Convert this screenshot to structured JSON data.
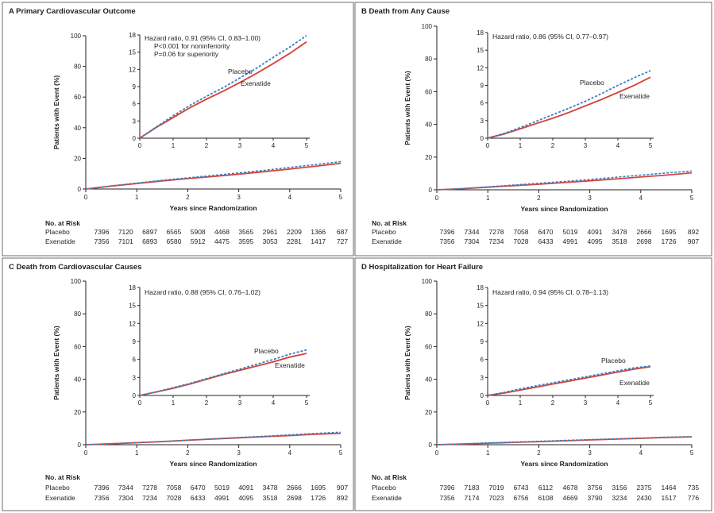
{
  "colors": {
    "placebo": "#3a7fc2",
    "exenatide": "#d6453a",
    "axis": "#231f20",
    "frame": "#6d6e71"
  },
  "risk_header": "No. at Risk",
  "x_axis_label": "Years since Randomization",
  "y_axis_label": "Patients with Event (%)",
  "chart_data": [
    {
      "type": "line",
      "panel_letter": "A",
      "title": "Primary Cardiovascular Outcome",
      "xlabel": "Years since Randomization",
      "ylabel": "Patients with Event (%)",
      "xlim": [
        0,
        5
      ],
      "ylim": [
        0,
        100
      ],
      "x_ticks": [
        0,
        1,
        2,
        3,
        4,
        5
      ],
      "y_ticks": [
        0,
        20,
        40,
        60,
        80,
        100
      ],
      "inset": {
        "ylim": [
          0,
          18
        ],
        "y_ticks": [
          0,
          3,
          6,
          9,
          12,
          15,
          18
        ],
        "x_ticks": [
          0,
          1,
          2,
          3,
          4,
          5
        ],
        "annotation": [
          "Hazard ratio, 0.91 (95% CI, 0.83–1.00)",
          "P<0.001 for noninferiority",
          "P=0.06 for superiority"
        ],
        "labels": {
          "placebo": "Placebo",
          "exenatide": "Exenatide"
        }
      },
      "series": [
        {
          "name": "Placebo",
          "style": "dashed",
          "x": [
            0,
            0.5,
            1,
            1.5,
            2,
            2.5,
            3,
            3.5,
            4,
            4.5,
            5
          ],
          "y": [
            0,
            2.0,
            3.9,
            5.7,
            7.3,
            8.8,
            10.5,
            12.2,
            14.1,
            15.9,
            17.9
          ]
        },
        {
          "name": "Exenatide",
          "style": "solid",
          "x": [
            0,
            0.5,
            1,
            1.5,
            2,
            2.5,
            3,
            3.5,
            4,
            4.5,
            5
          ],
          "y": [
            0,
            1.9,
            3.6,
            5.3,
            6.8,
            8.2,
            9.7,
            11.3,
            13.0,
            14.8,
            16.8
          ]
        }
      ],
      "at_risk": {
        "Placebo": [
          "7396",
          "7120",
          "6897",
          "6565",
          "5908",
          "4468",
          "3565",
          "2961",
          "2209",
          "1366",
          "687"
        ],
        "Exenatide": [
          "7356",
          "7101",
          "6893",
          "6580",
          "5912",
          "4475",
          "3595",
          "3053",
          "2281",
          "1417",
          "727"
        ]
      }
    },
    {
      "type": "line",
      "panel_letter": "B",
      "title": "Death from Any Cause",
      "xlabel": "Years since Randomization",
      "ylabel": "Patients with Event (%)",
      "xlim": [
        0,
        5
      ],
      "ylim": [
        0,
        100
      ],
      "x_ticks": [
        0,
        1,
        2,
        3,
        4,
        5
      ],
      "y_ticks": [
        0,
        20,
        40,
        60,
        80,
        100
      ],
      "inset": {
        "ylim": [
          0,
          18
        ],
        "y_ticks": [
          0,
          3,
          6,
          9,
          12,
          15,
          18
        ],
        "x_ticks": [
          0,
          1,
          2,
          3,
          4,
          5
        ],
        "annotation": [
          "Hazard ratio, 0.86 (95% CI, 0.77–0.97)"
        ],
        "labels": {
          "placebo": "Placebo",
          "exenatide": "Exenatide"
        }
      },
      "series": [
        {
          "name": "Placebo",
          "style": "dashed",
          "x": [
            0,
            0.5,
            1,
            1.5,
            2,
            2.5,
            3,
            3.5,
            4,
            4.5,
            5
          ],
          "y": [
            0,
            0.8,
            1.8,
            2.9,
            4.0,
            5.1,
            6.3,
            7.6,
            9.0,
            10.3,
            11.5
          ]
        },
        {
          "name": "Exenatide",
          "style": "solid",
          "x": [
            0,
            0.5,
            1,
            1.5,
            2,
            2.5,
            3,
            3.5,
            4,
            4.5,
            5
          ],
          "y": [
            0,
            0.7,
            1.6,
            2.5,
            3.4,
            4.4,
            5.5,
            6.6,
            7.8,
            9.0,
            10.4
          ]
        }
      ],
      "at_risk": {
        "Placebo": [
          "7396",
          "7344",
          "7278",
          "7058",
          "6470",
          "5019",
          "4091",
          "3478",
          "2666",
          "1695",
          "892"
        ],
        "Exenatide": [
          "7356",
          "7304",
          "7234",
          "7028",
          "6433",
          "4991",
          "4095",
          "3518",
          "2698",
          "1726",
          "907"
        ]
      }
    },
    {
      "type": "line",
      "panel_letter": "C",
      "title": "Death from Cardiovascular Causes",
      "xlabel": "Years since Randomization",
      "ylabel": "Patients with Event (%)",
      "xlim": [
        0,
        5
      ],
      "ylim": [
        0,
        100
      ],
      "x_ticks": [
        0,
        1,
        2,
        3,
        4,
        5
      ],
      "y_ticks": [
        0,
        20,
        40,
        60,
        80,
        100
      ],
      "inset": {
        "ylim": [
          0,
          18
        ],
        "y_ticks": [
          0,
          3,
          6,
          9,
          12,
          15,
          18
        ],
        "x_ticks": [
          0,
          1,
          2,
          3,
          4,
          5
        ],
        "annotation": [
          "Hazard ratio, 0.88 (95% CI, 0.76–1.02)"
        ],
        "labels": {
          "placebo": "Placebo",
          "exenatide": "Exenatide"
        }
      },
      "series": [
        {
          "name": "Placebo",
          "style": "dashed",
          "x": [
            0,
            0.5,
            1,
            1.5,
            2,
            2.5,
            3,
            3.5,
            4,
            4.5,
            5
          ],
          "y": [
            0,
            0.6,
            1.3,
            2.0,
            2.8,
            3.6,
            4.4,
            5.2,
            6.0,
            6.9,
            7.6
          ]
        },
        {
          "name": "Exenatide",
          "style": "solid",
          "x": [
            0,
            0.5,
            1,
            1.5,
            2,
            2.5,
            3,
            3.5,
            4,
            4.5,
            5
          ],
          "y": [
            0,
            0.6,
            1.2,
            1.9,
            2.7,
            3.5,
            4.2,
            4.9,
            5.6,
            6.4,
            7.0
          ]
        }
      ],
      "at_risk": {
        "Placebo": [
          "7396",
          "7344",
          "7278",
          "7058",
          "6470",
          "5019",
          "4091",
          "3478",
          "2666",
          "1695",
          "907"
        ],
        "Exenatide": [
          "7356",
          "7304",
          "7234",
          "7028",
          "6433",
          "4991",
          "4095",
          "3518",
          "2698",
          "1726",
          "892"
        ]
      }
    },
    {
      "type": "line",
      "panel_letter": "D",
      "title": "Hospitalization for Heart Failure",
      "xlabel": "Years since Randomization",
      "ylabel": "Patients with Event (%)",
      "xlim": [
        0,
        5
      ],
      "ylim": [
        0,
        100
      ],
      "x_ticks": [
        0,
        1,
        2,
        3,
        4,
        5
      ],
      "y_ticks": [
        0,
        20,
        40,
        60,
        80,
        100
      ],
      "inset": {
        "ylim": [
          0,
          18
        ],
        "y_ticks": [
          0,
          3,
          6,
          9,
          12,
          15,
          18
        ],
        "x_ticks": [
          0,
          1,
          2,
          3,
          4,
          5
        ],
        "annotation": [
          "Hazard ratio, 0.94 (95% CI, 0.78–1.13)"
        ],
        "labels": {
          "placebo": "Placebo",
          "exenatide": "Exenatide"
        }
      },
      "series": [
        {
          "name": "Placebo",
          "style": "dashed",
          "x": [
            0,
            0.5,
            1,
            1.5,
            2,
            2.5,
            3,
            3.5,
            4,
            4.5,
            5
          ],
          "y": [
            0,
            0.5,
            1.1,
            1.6,
            2.1,
            2.6,
            3.1,
            3.6,
            4.1,
            4.6,
            4.9
          ]
        },
        {
          "name": "Exenatide",
          "style": "solid",
          "x": [
            0,
            0.5,
            1,
            1.5,
            2,
            2.5,
            3,
            3.5,
            4,
            4.5,
            5
          ],
          "y": [
            0,
            0.4,
            0.9,
            1.4,
            1.9,
            2.4,
            2.9,
            3.4,
            3.9,
            4.4,
            4.8
          ]
        }
      ],
      "at_risk": {
        "Placebo": [
          "7396",
          "7183",
          "7019",
          "6743",
          "6112",
          "4678",
          "3756",
          "3156",
          "2375",
          "1464",
          "735"
        ],
        "Exenatide": [
          "7356",
          "7174",
          "7023",
          "6756",
          "6108",
          "4669",
          "3790",
          "3234",
          "2430",
          "1517",
          "776"
        ]
      }
    }
  ]
}
